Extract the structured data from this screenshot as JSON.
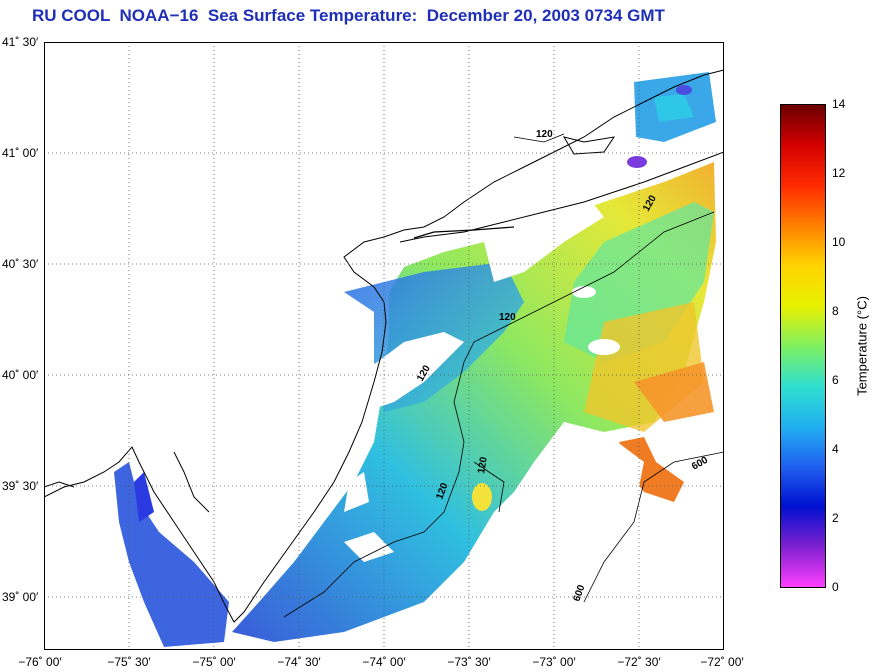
{
  "title": "RU COOL  NOAA−16  Sea Surface Temperature:  December 20, 2003 0734 GMT",
  "map": {
    "type": "sea-surface-temperature",
    "lat_ticks": [
      "41˚ 30′",
      "41˚ 00′",
      "40˚ 30′",
      "40˚ 00′",
      "39˚ 30′",
      "39˚ 00′"
    ],
    "lon_ticks": [
      "−76˚ 00′",
      "−75˚ 30′",
      "−75˚ 00′",
      "−74˚ 30′",
      "−74˚ 00′",
      "−73˚ 30′",
      "−73˚ 00′",
      "−72˚ 30′",
      "−72˚ 00′"
    ],
    "contour_labels": [
      "120",
      "120",
      "120",
      "120",
      "120",
      "120",
      "600",
      "600"
    ],
    "land_color": "#ffffff",
    "grid": true
  },
  "colorbar": {
    "label": "Temperature (°C)",
    "ticks": [
      "14",
      "12",
      "10",
      "8",
      "6",
      "4",
      "2",
      "0"
    ],
    "range": [
      0,
      14
    ],
    "colors": [
      "#6b0000",
      "#d40000",
      "#ff2a00",
      "#ff8000",
      "#ffd400",
      "#e8f000",
      "#80f060",
      "#30e0d0",
      "#20b0f0",
      "#2060f0",
      "#0010d0",
      "#8020d0",
      "#ff40ff"
    ]
  }
}
